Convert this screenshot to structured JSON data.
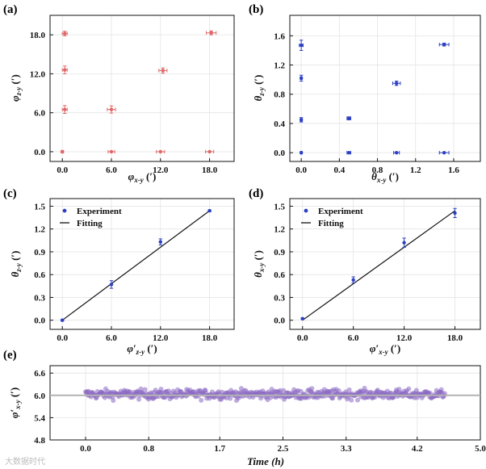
{
  "chart_data": [
    {
      "id": "a",
      "panel_label": "(a)",
      "type": "scatter",
      "xlabel": "φx-y (′)",
      "ylabel": "φz-y (′)",
      "xlim": [
        -1.5,
        21.0
      ],
      "ylim": [
        -1.5,
        21.0
      ],
      "xticks": [
        "0.0",
        "6.0",
        "12.0",
        "18.0"
      ],
      "yticks": [
        "0.0",
        "6.0",
        "12.0",
        "18.0"
      ],
      "grid": true,
      "color": "#e06666",
      "points": [
        {
          "x": 0.0,
          "y": 0.0,
          "xerr": 0.15,
          "yerr": 0.0
        },
        {
          "x": 0.3,
          "y": 6.5,
          "xerr": 0.3,
          "yerr": 0.6
        },
        {
          "x": 0.3,
          "y": 12.6,
          "xerr": 0.3,
          "yerr": 0.6
        },
        {
          "x": 0.3,
          "y": 18.2,
          "xerr": 0.3,
          "yerr": 0.35
        },
        {
          "x": 6.0,
          "y": 0.0,
          "xerr": 0.4,
          "yerr": 0.0
        },
        {
          "x": 6.0,
          "y": 6.5,
          "xerr": 0.5,
          "yerr": 0.55
        },
        {
          "x": 12.0,
          "y": 0.0,
          "xerr": 0.5,
          "yerr": 0.0
        },
        {
          "x": 12.3,
          "y": 12.5,
          "xerr": 0.5,
          "yerr": 0.4
        },
        {
          "x": 18.0,
          "y": 0.0,
          "xerr": 0.5,
          "yerr": 0.0
        },
        {
          "x": 18.2,
          "y": 18.3,
          "xerr": 0.6,
          "yerr": 0.3
        }
      ]
    },
    {
      "id": "b",
      "panel_label": "(b)",
      "type": "scatter",
      "xlabel": "θx-y (′)",
      "ylabel": "θz-y (′)",
      "xlim": [
        -0.12,
        1.88
      ],
      "ylim": [
        -0.12,
        1.88
      ],
      "xticks": [
        "0.0",
        "0.4",
        "0.8",
        "1.2",
        "1.6"
      ],
      "yticks": [
        "0.0",
        "0.4",
        "0.8",
        "1.2",
        "1.6"
      ],
      "grid": true,
      "color": "#2b3fc4",
      "points": [
        {
          "x": 0.0,
          "y": 0.0,
          "xerr": 0.01,
          "yerr": 0.0
        },
        {
          "x": 0.0,
          "y": 0.45,
          "xerr": 0.01,
          "yerr": 0.03
        },
        {
          "x": 0.0,
          "y": 1.02,
          "xerr": 0.01,
          "yerr": 0.04
        },
        {
          "x": 0.0,
          "y": 1.47,
          "xerr": 0.02,
          "yerr": 0.07
        },
        {
          "x": 0.5,
          "y": 0.0,
          "xerr": 0.02,
          "yerr": 0.0
        },
        {
          "x": 0.5,
          "y": 0.47,
          "xerr": 0.02,
          "yerr": 0.02
        },
        {
          "x": 1.0,
          "y": 0.0,
          "xerr": 0.03,
          "yerr": 0.0
        },
        {
          "x": 1.0,
          "y": 0.95,
          "xerr": 0.04,
          "yerr": 0.03
        },
        {
          "x": 1.5,
          "y": 0.0,
          "xerr": 0.05,
          "yerr": 0.0
        },
        {
          "x": 1.5,
          "y": 1.48,
          "xerr": 0.05,
          "yerr": 0.02
        }
      ]
    },
    {
      "id": "c",
      "panel_label": "(c)",
      "type": "scatter",
      "xlabel": "φ′z-y (′)",
      "ylabel": "θz-y (′)",
      "xlim": [
        -1.5,
        21.0
      ],
      "ylim": [
        -0.12,
        1.6
      ],
      "xticks": [
        "0.0",
        "6.0",
        "12.0",
        "18.0"
      ],
      "yticks": [
        "0.0",
        "0.3",
        "0.6",
        "0.9",
        "1.2",
        "1.5"
      ],
      "grid": true,
      "legend": [
        "Experiment",
        "Fitting"
      ],
      "legend_position": "top-left",
      "color": "#2b3fc4",
      "points": [
        {
          "x": 0.0,
          "y": 0.0,
          "yerr": 0.01
        },
        {
          "x": 6.0,
          "y": 0.47,
          "yerr": 0.05
        },
        {
          "x": 12.0,
          "y": 1.03,
          "yerr": 0.04
        },
        {
          "x": 18.0,
          "y": 1.44,
          "yerr": 0.01
        }
      ],
      "fit_line": {
        "x": [
          0.0,
          18.0
        ],
        "y": [
          0.0,
          1.44
        ]
      }
    },
    {
      "id": "d",
      "panel_label": "(d)",
      "type": "scatter",
      "xlabel": "φ′x-y (′)",
      "ylabel": "θx-y (′)",
      "xlim": [
        -1.5,
        21.0
      ],
      "ylim": [
        -0.12,
        1.6
      ],
      "xticks": [
        "0.0",
        "6.0",
        "12.0",
        "18.0"
      ],
      "yticks": [
        "0.0",
        "0.3",
        "0.6",
        "0.9",
        "1.2",
        "1.5"
      ],
      "grid": true,
      "legend": [
        "Experiment",
        "Fitting"
      ],
      "legend_position": "top-left",
      "color": "#2b3fc4",
      "points": [
        {
          "x": 0.0,
          "y": 0.02,
          "yerr": 0.01
        },
        {
          "x": 6.0,
          "y": 0.53,
          "yerr": 0.04
        },
        {
          "x": 12.0,
          "y": 1.02,
          "yerr": 0.06
        },
        {
          "x": 18.0,
          "y": 1.41,
          "yerr": 0.06
        }
      ],
      "fit_line": {
        "x": [
          0.0,
          18.0
        ],
        "y": [
          0.0,
          1.44
        ]
      }
    },
    {
      "id": "e",
      "panel_label": "(e)",
      "type": "scatter",
      "xlabel": "Time (h)",
      "ylabel": "φ′x-y (′)",
      "xlim": [
        -0.45,
        5.0
      ],
      "ylim": [
        4.8,
        6.8
      ],
      "xticks": [
        "0.0",
        "0.8",
        "1.7",
        "2.5",
        "3.3",
        "4.2",
        "5.0"
      ],
      "yticks": [
        "4.8",
        "5.4",
        "6.0",
        "6.6"
      ],
      "grid": true,
      "color": "#8b68c2",
      "reference_line": 6.0,
      "time_range": [
        0.0,
        4.55
      ],
      "mean": 6.03,
      "spread": 0.17,
      "n_points": 520
    }
  ],
  "watermark": "大数据时代"
}
